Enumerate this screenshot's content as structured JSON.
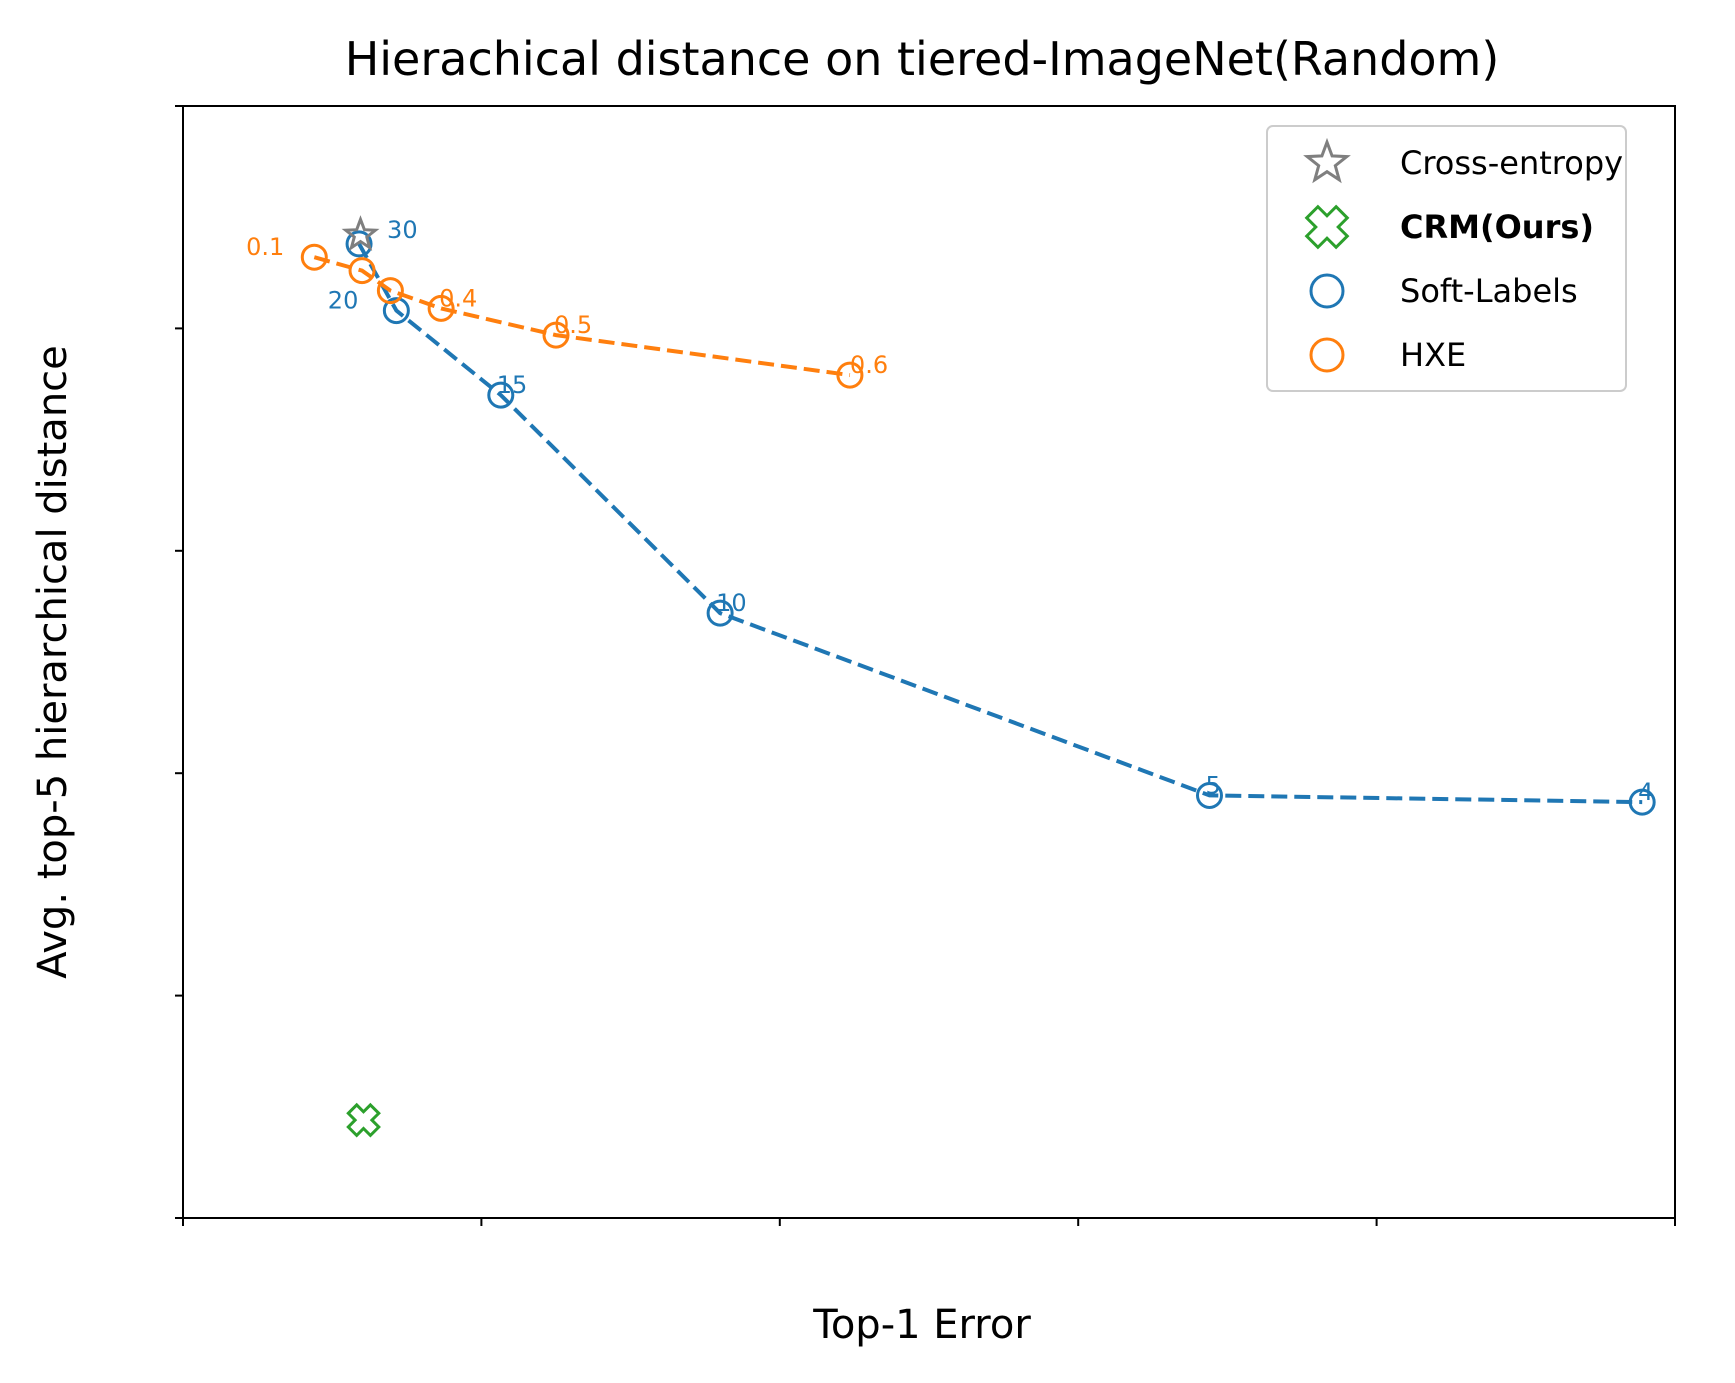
{
  "chart_data": {
    "type": "scatter",
    "title": "Hierachical distance on tiered-ImageNet(Random)",
    "xlabel": "Top-1 Error",
    "ylabel": "Avg. top-5 hierarchical distance",
    "xlim": [
      0.3,
      0.4
    ],
    "ylim": [
      5.5,
      8.0
    ],
    "xticks": [
      "0.30",
      "0.32",
      "0.34",
      "0.36",
      "0.38",
      "0.40"
    ],
    "yticks": [
      "5.5",
      "6.0",
      "6.5",
      "7.0",
      "7.5",
      "8.0"
    ],
    "grid": false,
    "legend_position": "top-right",
    "series": [
      {
        "name": "Cross-entropy",
        "marker": "star",
        "color": "#7f7f7f",
        "line": false,
        "bold": false,
        "points": [
          {
            "x": 0.3119,
            "y": 7.71,
            "label": ""
          }
        ]
      },
      {
        "name": "CRM(Ours)",
        "marker": "x-cross",
        "color": "#2ca02c",
        "line": false,
        "bold": true,
        "points": [
          {
            "x": 0.3121,
            "y": 5.72,
            "label": ""
          }
        ]
      },
      {
        "name": "Soft-Labels",
        "marker": "circle",
        "color": "#1f77b4",
        "line": true,
        "bold": false,
        "points": [
          {
            "x": 0.3118,
            "y": 7.69,
            "label": "30"
          },
          {
            "x": 0.3143,
            "y": 7.54,
            "label": "20"
          },
          {
            "x": 0.3213,
            "y": 7.35,
            "label": "15"
          },
          {
            "x": 0.336,
            "y": 6.86,
            "label": "10"
          },
          {
            "x": 0.3688,
            "y": 6.45,
            "label": "5"
          },
          {
            "x": 0.3978,
            "y": 6.435,
            "label": "4"
          }
        ]
      },
      {
        "name": "HXE",
        "marker": "circle",
        "color": "#ff7f0e",
        "line": true,
        "bold": false,
        "points": [
          {
            "x": 0.3088,
            "y": 7.66,
            "label": "0.1"
          },
          {
            "x": 0.312,
            "y": 7.63,
            "label": ""
          },
          {
            "x": 0.3139,
            "y": 7.585,
            "label": ""
          },
          {
            "x": 0.3173,
            "y": 7.545,
            "label": "0.4"
          },
          {
            "x": 0.325,
            "y": 7.485,
            "label": "0.5"
          },
          {
            "x": 0.3447,
            "y": 7.395,
            "label": "0.6"
          }
        ]
      }
    ]
  }
}
